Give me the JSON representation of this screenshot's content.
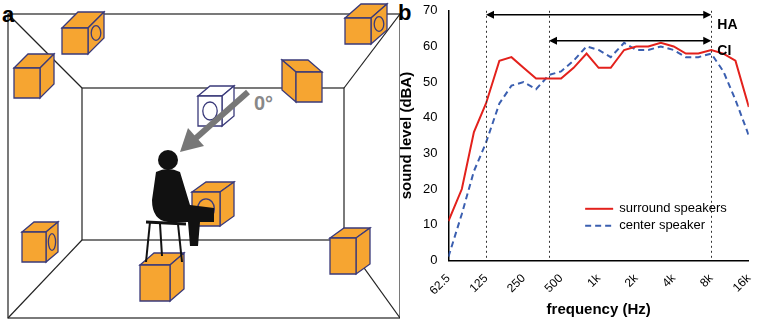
{
  "diagram": {
    "panel_label": "a",
    "direction_label": "0°"
  },
  "chart_data": {
    "type": "line",
    "panel_label": "b",
    "xlabel": "frequency (Hz)",
    "ylabel": "sound level (dBA)",
    "log": "x",
    "grid": false,
    "legend": "lower right",
    "x": [
      62.5,
      80,
      100,
      125,
      160,
      200,
      250,
      315,
      400,
      500,
      630,
      800,
      1000,
      1250,
      1600,
      2000,
      2500,
      3150,
      4000,
      5000,
      6300,
      8000,
      10000,
      12500,
      16000
    ],
    "xlim": [
      62.5,
      16000
    ],
    "xticks": [
      62.5,
      125,
      250,
      500,
      {
        "value": 1000,
        "label": "1k"
      },
      {
        "value": 2000,
        "label": "2k"
      },
      {
        "value": 4000,
        "label": "4k"
      },
      {
        "value": 8000,
        "label": "8k"
      },
      {
        "value": 16000,
        "label": "16k"
      }
    ],
    "ylim": [
      0,
      70
    ],
    "yticks": [
      0,
      10,
      20,
      30,
      40,
      50,
      60,
      70
    ],
    "series": [
      {
        "name": "surround speakers",
        "color": "#e3211c",
        "line_style": "solid",
        "values": [
          11,
          20,
          36,
          44,
          56,
          57,
          54,
          51,
          51,
          51,
          54,
          58,
          54,
          54,
          59,
          60,
          60,
          61,
          60,
          58,
          58,
          59,
          58,
          56,
          43
        ]
      },
      {
        "name": "center speaker",
        "color": "#3b5fb0",
        "line_style": "dashed",
        "values": [
          1,
          13,
          25,
          33,
          44,
          49,
          50,
          48,
          52,
          53,
          56,
          60,
          59,
          57,
          61,
          59,
          59,
          60,
          59,
          57,
          57,
          58,
          53,
          45,
          35
        ]
      }
    ],
    "annotations": [
      {
        "label": "HA",
        "x": [
          125,
          8000
        ]
      },
      {
        "label": "CI",
        "x": [
          400,
          8000
        ]
      }
    ]
  }
}
